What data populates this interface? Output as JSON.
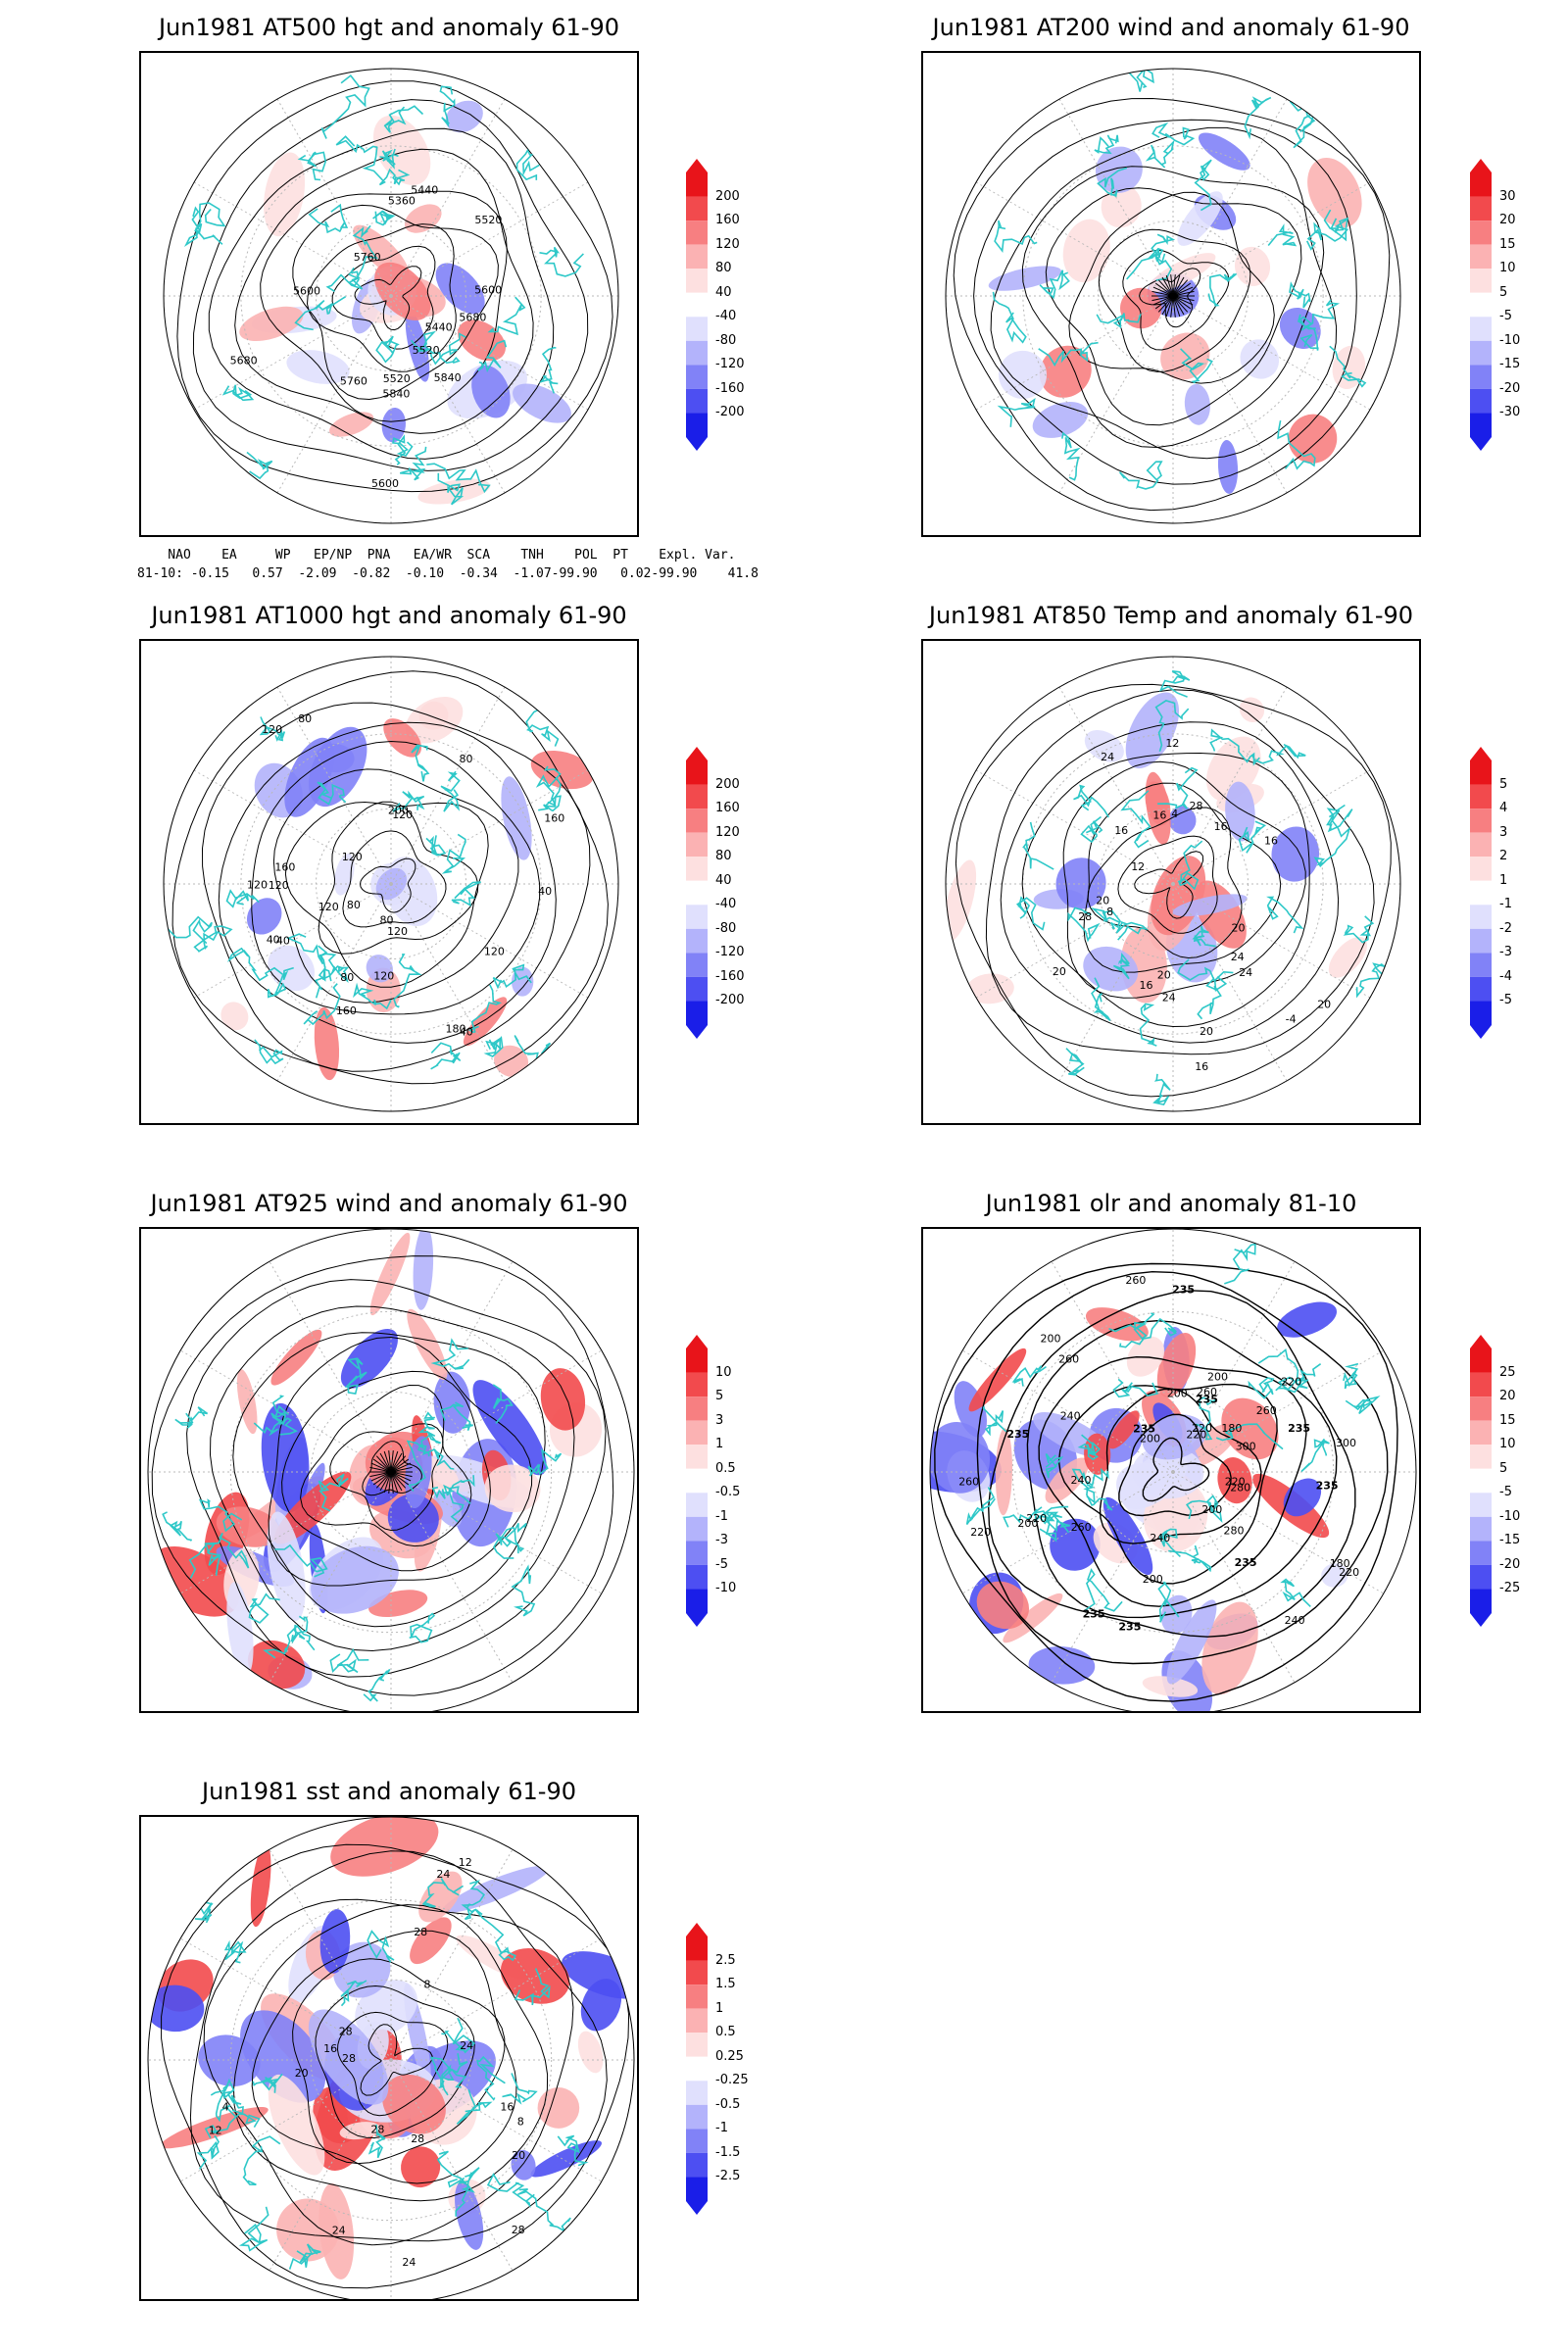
{
  "panels": [
    {
      "id": "p1",
      "title": "Jun1981 AT500 hgt and anomaly 61-90",
      "colorbar": [
        "200",
        "160",
        "120",
        "80",
        "40",
        "-40",
        "-80",
        "-120",
        "-160",
        "-200"
      ],
      "contour_labels": [
        "5600",
        "5520",
        "5440",
        "5600",
        "5520",
        "5440",
        "5360",
        "5520",
        "5600",
        "5680",
        "5760",
        "5840",
        "5760",
        "5680",
        "5840"
      ]
    },
    {
      "id": "p2",
      "title": "Jun1981 AT200 wind and anomaly 61-90",
      "colorbar": [
        "30",
        "20",
        "15",
        "10",
        "5",
        "-5",
        "-10",
        "-15",
        "-20",
        "-30"
      ],
      "contour_labels": []
    },
    {
      "id": "p3",
      "title": "Jun1981 AT1000 hgt and anomaly 61-90",
      "colorbar": [
        "200",
        "160",
        "120",
        "80",
        "40",
        "-40",
        "-80",
        "-120",
        "-160",
        "-200"
      ],
      "contour_labels": [
        "120",
        "120",
        "200",
        "160",
        "120",
        "80",
        "40",
        "80",
        "120",
        "160",
        "80",
        "40",
        "120",
        "120",
        "40",
        "160",
        "40",
        "120",
        "80",
        "80",
        "120",
        "120",
        "180"
      ]
    },
    {
      "id": "p4",
      "title": "Jun1981 AT850 Temp and anomaly 61-90",
      "colorbar": [
        "5",
        "4",
        "3",
        "2",
        "1",
        "-1",
        "-2",
        "-3",
        "-4",
        "-5"
      ],
      "contour_labels": [
        "16",
        "16",
        "12",
        "20",
        "16",
        "12",
        "4",
        "8",
        "20",
        "24",
        "20",
        "24",
        "-4",
        "16",
        "28",
        "20",
        "24",
        "28",
        "16",
        "20",
        "16",
        "24",
        "20"
      ]
    },
    {
      "id": "p5",
      "title": "Jun1981 AT925 wind and anomaly 61-90",
      "colorbar": [
        "10",
        "5",
        "3",
        "1",
        "0.5",
        "-0.5",
        "-1",
        "-3",
        "-5",
        "-10"
      ],
      "contour_labels": []
    },
    {
      "id": "p6",
      "title": "Jun1981 olr and anomaly 81-10",
      "colorbar": [
        "25",
        "20",
        "15",
        "10",
        "5",
        "-5",
        "-10",
        "-15",
        "-20",
        "-25"
      ],
      "contour_labels": [
        "235",
        "240",
        "220",
        "260",
        "200",
        "235",
        "200",
        "220",
        "260",
        "235",
        "200",
        "220",
        "235",
        "180",
        "220",
        "200",
        "260",
        "235",
        "280",
        "235",
        "240",
        "235",
        "260",
        "200",
        "220",
        "300",
        "280",
        "240",
        "260",
        "235",
        "220",
        "200",
        "300",
        "260",
        "235",
        "240",
        "220",
        "180",
        "200"
      ]
    },
    {
      "id": "p7",
      "title": "Jun1981 sst and anomaly 61-90",
      "colorbar": [
        "2.5",
        "1.5",
        "1",
        "0.5",
        "0.25",
        "-0.25",
        "-0.5",
        "-1",
        "-1.5",
        "-2.5"
      ],
      "contour_labels": [
        "28",
        "24",
        "24",
        "20",
        "16",
        "12",
        "8",
        "28",
        "28",
        "24",
        "28",
        "12",
        "8",
        "4",
        "20",
        "16",
        "24",
        "28",
        "28"
      ]
    }
  ],
  "teleconnection_table": {
    "header": "    NAO    EA     WP   EP/NP  PNA   EA/WR  SCA    TNH    POL  PT    Expl. Var.",
    "row": "81-10: -0.15   0.57  -2.09  -0.82  -0.10  -0.34  -1.07-99.90   0.02-99.90    41.8"
  },
  "colors": {
    "pos": [
      "#e8141a",
      "#f24a4d",
      "#f77f81",
      "#fbb2b3",
      "#fde0e0"
    ],
    "neg": [
      "#e0e0fd",
      "#b3b3fb",
      "#8182f7",
      "#4d4ff2",
      "#1a1ee8"
    ],
    "coast": "#2ec8c8",
    "contour": "#000000",
    "grid": "#b8b8b8"
  }
}
